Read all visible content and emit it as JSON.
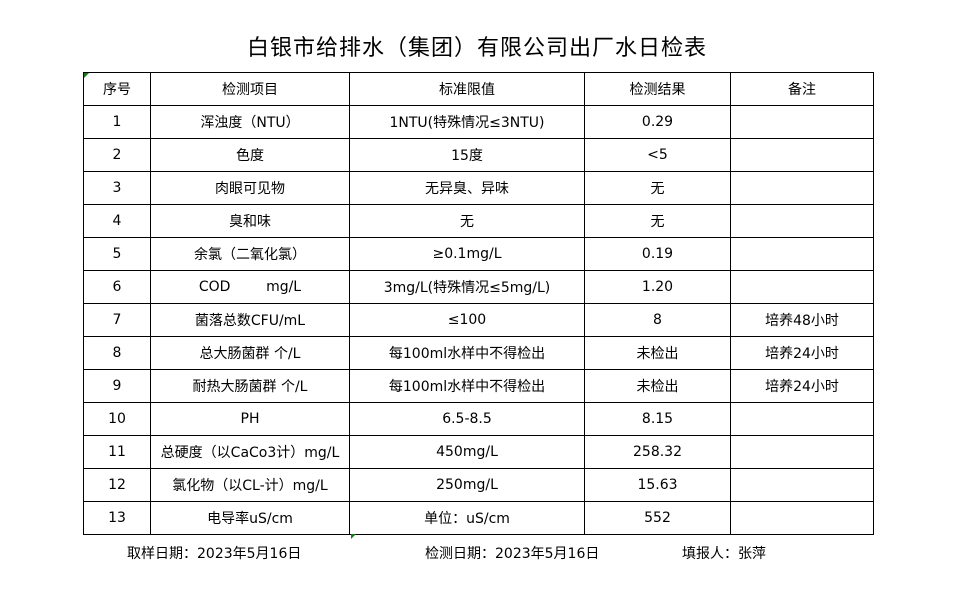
{
  "title": "白银市给排水（集团）有限公司出厂水日检表",
  "headers": [
    "序号",
    "检测项目",
    "标准限值",
    "检测结果",
    "备注"
  ],
  "rows": [
    [
      "1",
      "浑浊度（NTU）",
      "1NTU(特殊情况≤3NTU)",
      "0.29",
      ""
    ],
    [
      "2",
      "色度",
      "15度",
      "<5",
      ""
    ],
    [
      "3",
      "肉眼可见物",
      "无异臭、异味",
      "无",
      ""
    ],
    [
      "4",
      "臭和味",
      "无",
      "无",
      ""
    ],
    [
      "5",
      "余氯（二氧化氯）",
      "≥0.1mg/L",
      "0.19",
      ""
    ],
    [
      "6",
      "COD        mg/L",
      "3mg/L(特殊情况≤5mg/L)",
      "1.20",
      ""
    ],
    [
      "7",
      "菌落总数CFU/mL",
      "≤100",
      "8",
      "培养48小时"
    ],
    [
      "8",
      "总大肠菌群 个/L",
      "每100ml水样中不得检出",
      "未检出",
      "培养24小时"
    ],
    [
      "9",
      "耐热大肠菌群 个/L",
      "每100ml水样中不得检出",
      "未检出",
      "培养24小时"
    ],
    [
      "10",
      "PH",
      "6.5-8.5",
      "8.15",
      ""
    ],
    [
      "11",
      "总硬度（以CaCo3计）mg/L",
      "450mg/L",
      "258.32",
      ""
    ],
    [
      "12",
      "氯化物（以CL-计）mg/L",
      "250mg/L",
      "15.63",
      ""
    ],
    [
      "13",
      "电导率uS/cm",
      "单位：uS/cm",
      "552",
      ""
    ]
  ],
  "footer": {
    "sampling_date": "取样日期：2023年5月16日",
    "test_date": "检测日期：2023年5月16日",
    "reporter": "填报人：张萍"
  }
}
